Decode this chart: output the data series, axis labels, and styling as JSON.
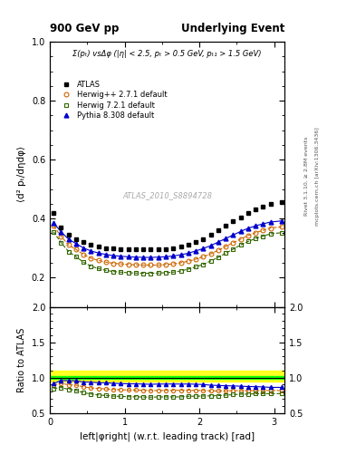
{
  "title_left": "900 GeV pp",
  "title_right": "Underlying Event",
  "annotation": "ATLAS_2010_S8894728",
  "subtitle": "Σ(pₜ) vsΔφ (|η| < 2.5, pₜ > 0.5 GeV, pₜ₁ > 1.5 GeV)",
  "right_label": "Rivet 3.1.10, ≥ 2.8M events",
  "right_label2": "mcplots.cern.ch [arXiv:1306.3436]",
  "ylabel_main": "⟨d² pₜ/dηdφ⟩",
  "ylabel_ratio": "Ratio to ATLAS",
  "xlabel": "left|φright| (w.r.t. leading track) [rad]",
  "xlim": [
    0,
    3.14159
  ],
  "ylim_main": [
    0.1,
    1.0
  ],
  "ylim_ratio": [
    0.5,
    2.0
  ],
  "yticks_main": [
    0.2,
    0.4,
    0.6,
    0.8,
    1.0
  ],
  "yticks_ratio": [
    0.5,
    1.0,
    1.5,
    2.0
  ],
  "xticks": [
    0,
    1,
    2,
    3
  ],
  "x_data": [
    0.05,
    0.15,
    0.25,
    0.35,
    0.45,
    0.55,
    0.65,
    0.75,
    0.85,
    0.95,
    1.05,
    1.15,
    1.25,
    1.35,
    1.45,
    1.55,
    1.65,
    1.75,
    1.85,
    1.95,
    2.05,
    2.15,
    2.25,
    2.35,
    2.45,
    2.55,
    2.65,
    2.75,
    2.85,
    2.95,
    3.1
  ],
  "atlas_y": [
    0.42,
    0.37,
    0.345,
    0.33,
    0.32,
    0.31,
    0.305,
    0.3,
    0.298,
    0.297,
    0.296,
    0.295,
    0.295,
    0.296,
    0.296,
    0.297,
    0.3,
    0.305,
    0.31,
    0.32,
    0.33,
    0.345,
    0.36,
    0.375,
    0.39,
    0.405,
    0.42,
    0.43,
    0.44,
    0.45,
    0.455
  ],
  "herwig_pp_y": [
    0.375,
    0.34,
    0.31,
    0.295,
    0.278,
    0.265,
    0.258,
    0.252,
    0.248,
    0.246,
    0.244,
    0.243,
    0.242,
    0.242,
    0.242,
    0.244,
    0.246,
    0.25,
    0.255,
    0.262,
    0.27,
    0.28,
    0.292,
    0.305,
    0.318,
    0.33,
    0.342,
    0.352,
    0.36,
    0.368,
    0.372
  ],
  "herwig721_y": [
    0.355,
    0.318,
    0.288,
    0.27,
    0.252,
    0.238,
    0.23,
    0.224,
    0.22,
    0.218,
    0.216,
    0.215,
    0.214,
    0.214,
    0.215,
    0.216,
    0.218,
    0.222,
    0.228,
    0.236,
    0.244,
    0.256,
    0.268,
    0.282,
    0.296,
    0.31,
    0.322,
    0.332,
    0.34,
    0.348,
    0.352
  ],
  "pythia_y": [
    0.385,
    0.355,
    0.33,
    0.315,
    0.3,
    0.29,
    0.283,
    0.278,
    0.274,
    0.272,
    0.27,
    0.269,
    0.268,
    0.268,
    0.269,
    0.27,
    0.273,
    0.277,
    0.282,
    0.29,
    0.298,
    0.308,
    0.32,
    0.332,
    0.344,
    0.356,
    0.367,
    0.375,
    0.382,
    0.388,
    0.392
  ],
  "atlas_color": "#000000",
  "herwig_pp_color": "#cc6600",
  "herwig721_color": "#336600",
  "pythia_color": "#0000cc",
  "band_yellow": [
    0.95,
    1.1
  ],
  "band_green": [
    0.98,
    1.02
  ],
  "legend_entries": [
    "ATLAS",
    "Herwig++ 2.7.1 default",
    "Herwig 7.2.1 default",
    "Pythia 8.308 default"
  ]
}
